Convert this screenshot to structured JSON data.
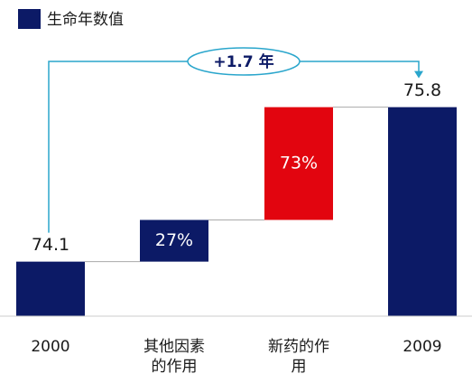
{
  "chart_data": {
    "type": "waterfall",
    "legend": "生命年数值",
    "annotation": "+1.7 年",
    "categories": [
      "2000",
      "其他因素的作用",
      "新药的作用",
      "2009"
    ],
    "values": [
      74.1,
      27,
      73,
      75.8
    ],
    "value_labels": [
      "74.1",
      "27%",
      "73%",
      "75.8"
    ],
    "colors": [
      "#0c1a66",
      "#0c1a66",
      "#e2050f",
      "#0c1a66"
    ],
    "ylim": [
      73.5,
      76
    ]
  }
}
